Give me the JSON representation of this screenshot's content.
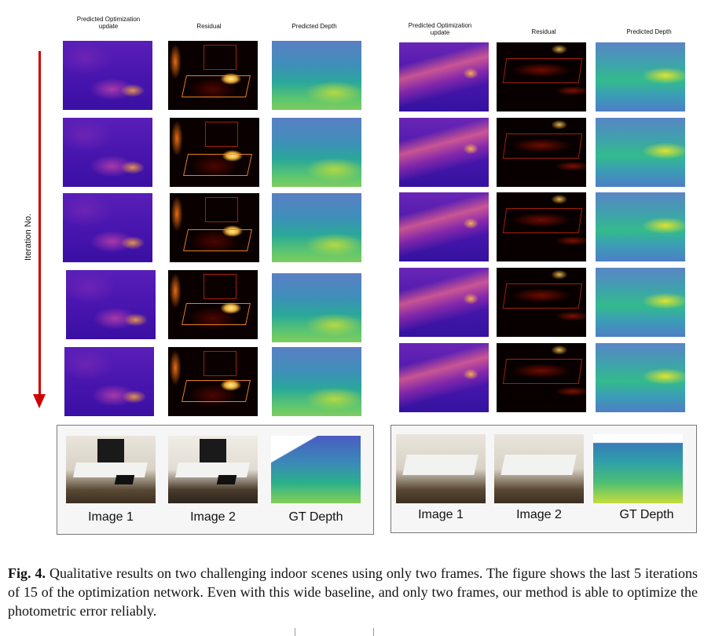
{
  "left_panel": {
    "col_headers": [
      "Predicted  Optimization\nupdate",
      "Residual",
      "Predicted Depth"
    ],
    "input_labels": [
      "Image 1",
      "Image 2",
      "GT Depth"
    ]
  },
  "right_panel": {
    "col_headers": [
      "Predicted  Optimization\nupdate",
      "Residual",
      "Predicted Depth"
    ],
    "input_labels": [
      "Image 1",
      "Image 2",
      "GT Depth"
    ]
  },
  "y_axis_label": "Iteration No.",
  "caption": {
    "label": "Fig. 4.",
    "text": "Qualitative results on two challenging indoor scenes using only two frames. The figure shows the last 5 iterations of 15 of the optimization network. Even with this wide baseline, and only two frames, our method is able to optimize the photometric error reliably."
  },
  "colors": {
    "arrow": "#d00000"
  }
}
